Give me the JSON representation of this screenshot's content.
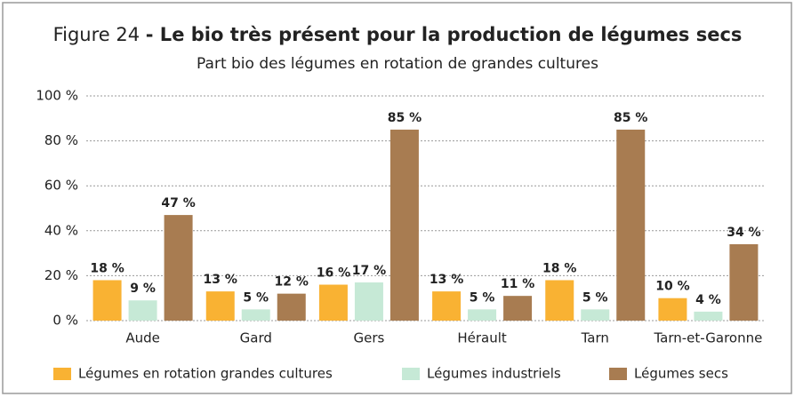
{
  "chart_data": {
    "type": "bar",
    "title_label": "Figure 24",
    "title": "- Le bio très présent pour la production de légumes secs",
    "subtitle": "Part bio des légumes en rotation de grandes cultures",
    "categories": [
      "Aude",
      "Gard",
      "Gers",
      "Hérault",
      "Tarn",
      "Tarn-et-Garonne"
    ],
    "series": [
      {
        "name": "Légumes en rotation grandes cultures",
        "color": "#f9b233",
        "values": [
          18,
          13,
          16,
          13,
          18,
          10
        ],
        "value_labels": [
          "18 %",
          "13 %",
          "16 %",
          "13 %",
          "18 %",
          "10 %"
        ]
      },
      {
        "name": "Légumes industriels",
        "color": "#c6e9d6",
        "values": [
          9,
          5,
          17,
          5,
          5,
          4
        ],
        "value_labels": [
          "9 %",
          "5 %",
          "17 %",
          "5 %",
          "5 %",
          "4 %"
        ]
      },
      {
        "name": "Légumes secs",
        "color": "#a87c51",
        "values": [
          47,
          12,
          85,
          11,
          85,
          34
        ],
        "value_labels": [
          "47 %",
          "12 %",
          "85 %",
          "11 %",
          "85 %",
          "34 %"
        ]
      }
    ],
    "ylim": [
      0,
      100
    ],
    "yticks": [
      {
        "value": 0,
        "label": "0 %"
      },
      {
        "value": 20,
        "label": "20 %"
      },
      {
        "value": 40,
        "label": "40 %"
      },
      {
        "value": 60,
        "label": "60 %"
      },
      {
        "value": 80,
        "label": "80 %"
      },
      {
        "value": 100,
        "label": "100 %"
      }
    ],
    "grid": true,
    "legend": "bottom"
  }
}
